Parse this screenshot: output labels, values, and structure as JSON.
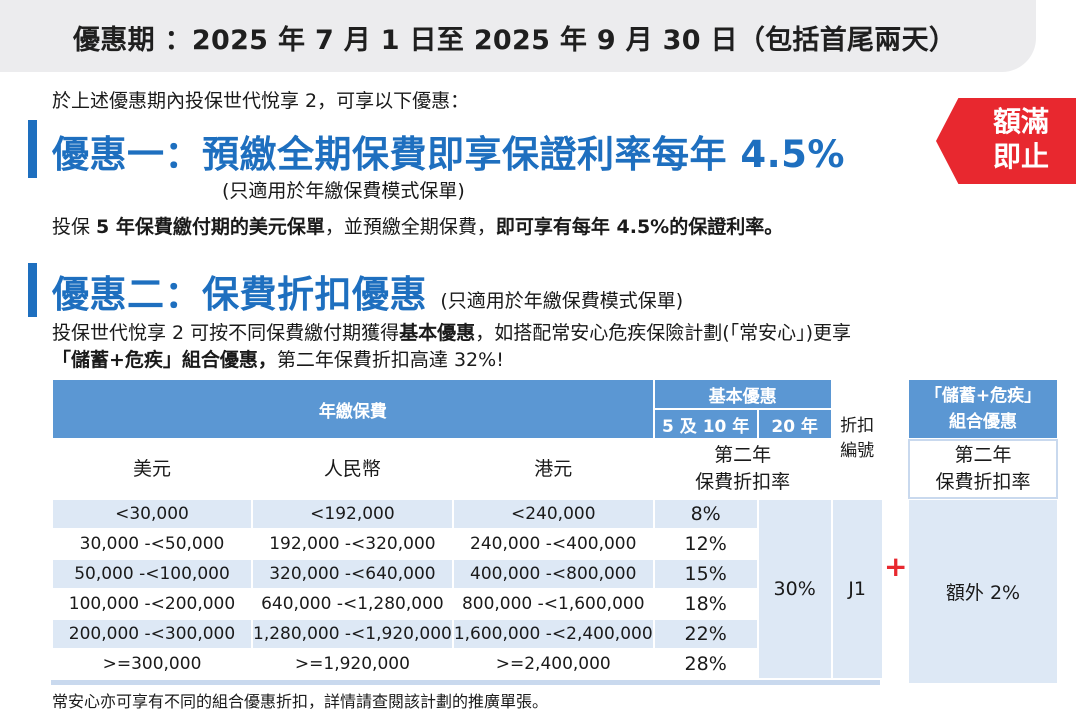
{
  "banner": "優惠期 ：2025 年 7 月 1 日至 2025 年 9 月 30 日（包括首尾兩天）",
  "intro": "於上述優惠期內投保世代悅享 2，可享以下優惠：",
  "offer1": {
    "title": "優惠一：預繳全期保費即享保證利率每年 4.5%",
    "note": "(只適用於年繳保費模式保單)",
    "body_pre": "投保 ",
    "body_b1": "5 年保費繳付期的美元保單",
    "body_mid": "，並預繳全期保費，",
    "body_b2": "即可享有每年 4.5%的保證利率。"
  },
  "tag": {
    "line1": "額滿",
    "line2": "即止",
    "color": "#e8282f"
  },
  "offer2": {
    "title": "優惠二：保費折扣優惠",
    "note": "(只適用於年繳保費模式保單)",
    "line1_pre": "投保世代悅享 2 可按不同保費繳付期獲得",
    "line1_b": "基本優惠",
    "line1_post": "，如搭配常安心危疾保險計劃(「常安心」)更享",
    "line2_b": "「儲蓄+危疾」組合優惠，",
    "line2_post": "第二年保費折扣高達 32%!"
  },
  "table": {
    "annual_premium": "年繳保費",
    "basic_offer": "基本優惠",
    "term_5_10": "5 及 10 年",
    "term_20": "20 年",
    "discount_code_l1": "折扣",
    "discount_code_l2": "編號",
    "col_usd": "美元",
    "col_rmb": "人民幣",
    "col_hkd": "港元",
    "rate_header_l1": "第二年",
    "rate_header_l2": "保費折扣率",
    "rows": [
      {
        "usd": "<30,000",
        "rmb": "<192,000",
        "hkd": "<240,000",
        "rate": "8%"
      },
      {
        "usd": "30,000 -<50,000",
        "rmb": "192,000 -<320,000",
        "hkd": "240,000 -<400,000",
        "rate": "12%"
      },
      {
        "usd": "50,000 -<100,000",
        "rmb": "320,000 -<640,000",
        "hkd": "400,000 -<800,000",
        "rate": "15%"
      },
      {
        "usd": "100,000 -<200,000",
        "rmb": "640,000 -<1,280,000",
        "hkd": "800,000 -<1,600,000",
        "rate": "18%"
      },
      {
        "usd": "200,000 -<300,000",
        "rmb": "1,280,000 -<1,920,000",
        "hkd": "1,600,000 -<2,400,000",
        "rate": "22%"
      },
      {
        "usd": ">=300,000",
        "rmb": ">=1,920,000",
        "hkd": ">=2,400,000",
        "rate": "28%"
      }
    ],
    "rate_20yr": "30%",
    "code": "J1",
    "plus": "+",
    "combo_header_l1": "「儲蓄+危疾」",
    "combo_header_l2": "組合優惠",
    "combo_rate_l1": "第二年",
    "combo_rate_l2": "保費折扣率",
    "combo_value": "額外 2%"
  },
  "footer": "常安心亦可享有不同的組合優惠折扣，詳情請查閱該計劃的推廣單張。"
}
